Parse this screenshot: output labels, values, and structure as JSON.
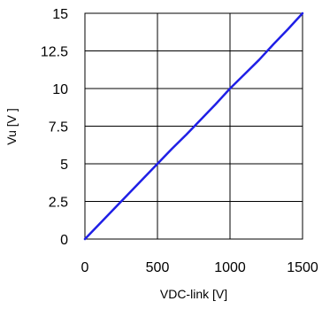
{
  "chart_data": {
    "type": "line",
    "xlabel": "VDC-link [V]",
    "ylabel": "Vu [V ]",
    "xlim": [
      0,
      1500
    ],
    "ylim": [
      0,
      15
    ],
    "x_ticks": [
      "0",
      "500",
      "1000",
      "1500"
    ],
    "y_ticks": [
      "0",
      "2.5",
      "5",
      "7.5",
      "10",
      "12.5",
      "15"
    ],
    "grid": true,
    "series": [
      {
        "color": "#1f1fe6",
        "points": [
          [
            0,
            0
          ],
          [
            100,
            1.0
          ],
          [
            200,
            2.0
          ],
          [
            300,
            3.0
          ],
          [
            400,
            4.0
          ],
          [
            500,
            5.0
          ],
          [
            600,
            6.0
          ],
          [
            700,
            6.95
          ],
          [
            800,
            7.95
          ],
          [
            900,
            8.95
          ],
          [
            1000,
            10.0
          ],
          [
            1100,
            10.95
          ],
          [
            1200,
            11.9
          ],
          [
            1300,
            12.95
          ],
          [
            1400,
            13.95
          ],
          [
            1500,
            15.0
          ]
        ]
      }
    ]
  }
}
